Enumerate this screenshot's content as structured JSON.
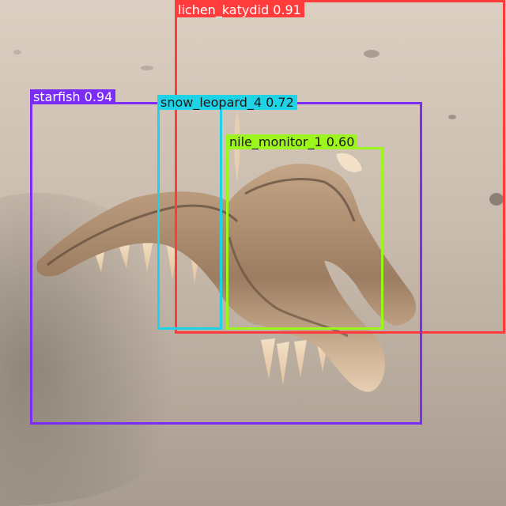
{
  "scene": {
    "subject": "starfish-on-sand",
    "colors": {
      "sand_light": "#d9cbbd",
      "sand_mid": "#b7aa9c",
      "sand_dark": "#8e8378",
      "starfish": "#b08e70",
      "starfish_light": "#f1dcc0"
    }
  },
  "detections": [
    {
      "class": "lichen_katydid",
      "score": "0.91",
      "color": "#ff3b3b",
      "text_color": "#ffffff"
    },
    {
      "class": "starfish",
      "score": "0.94",
      "color": "#7b2cf5",
      "text_color": "#ffffff"
    },
    {
      "class": "snow_leopard_4",
      "score": "0.72",
      "color": "#1fd3e6",
      "text_color": "#1a1a1a"
    },
    {
      "class": "nile_monitor_1",
      "score": "0.60",
      "color": "#9cf51c",
      "text_color": "#1a1a1a"
    }
  ]
}
